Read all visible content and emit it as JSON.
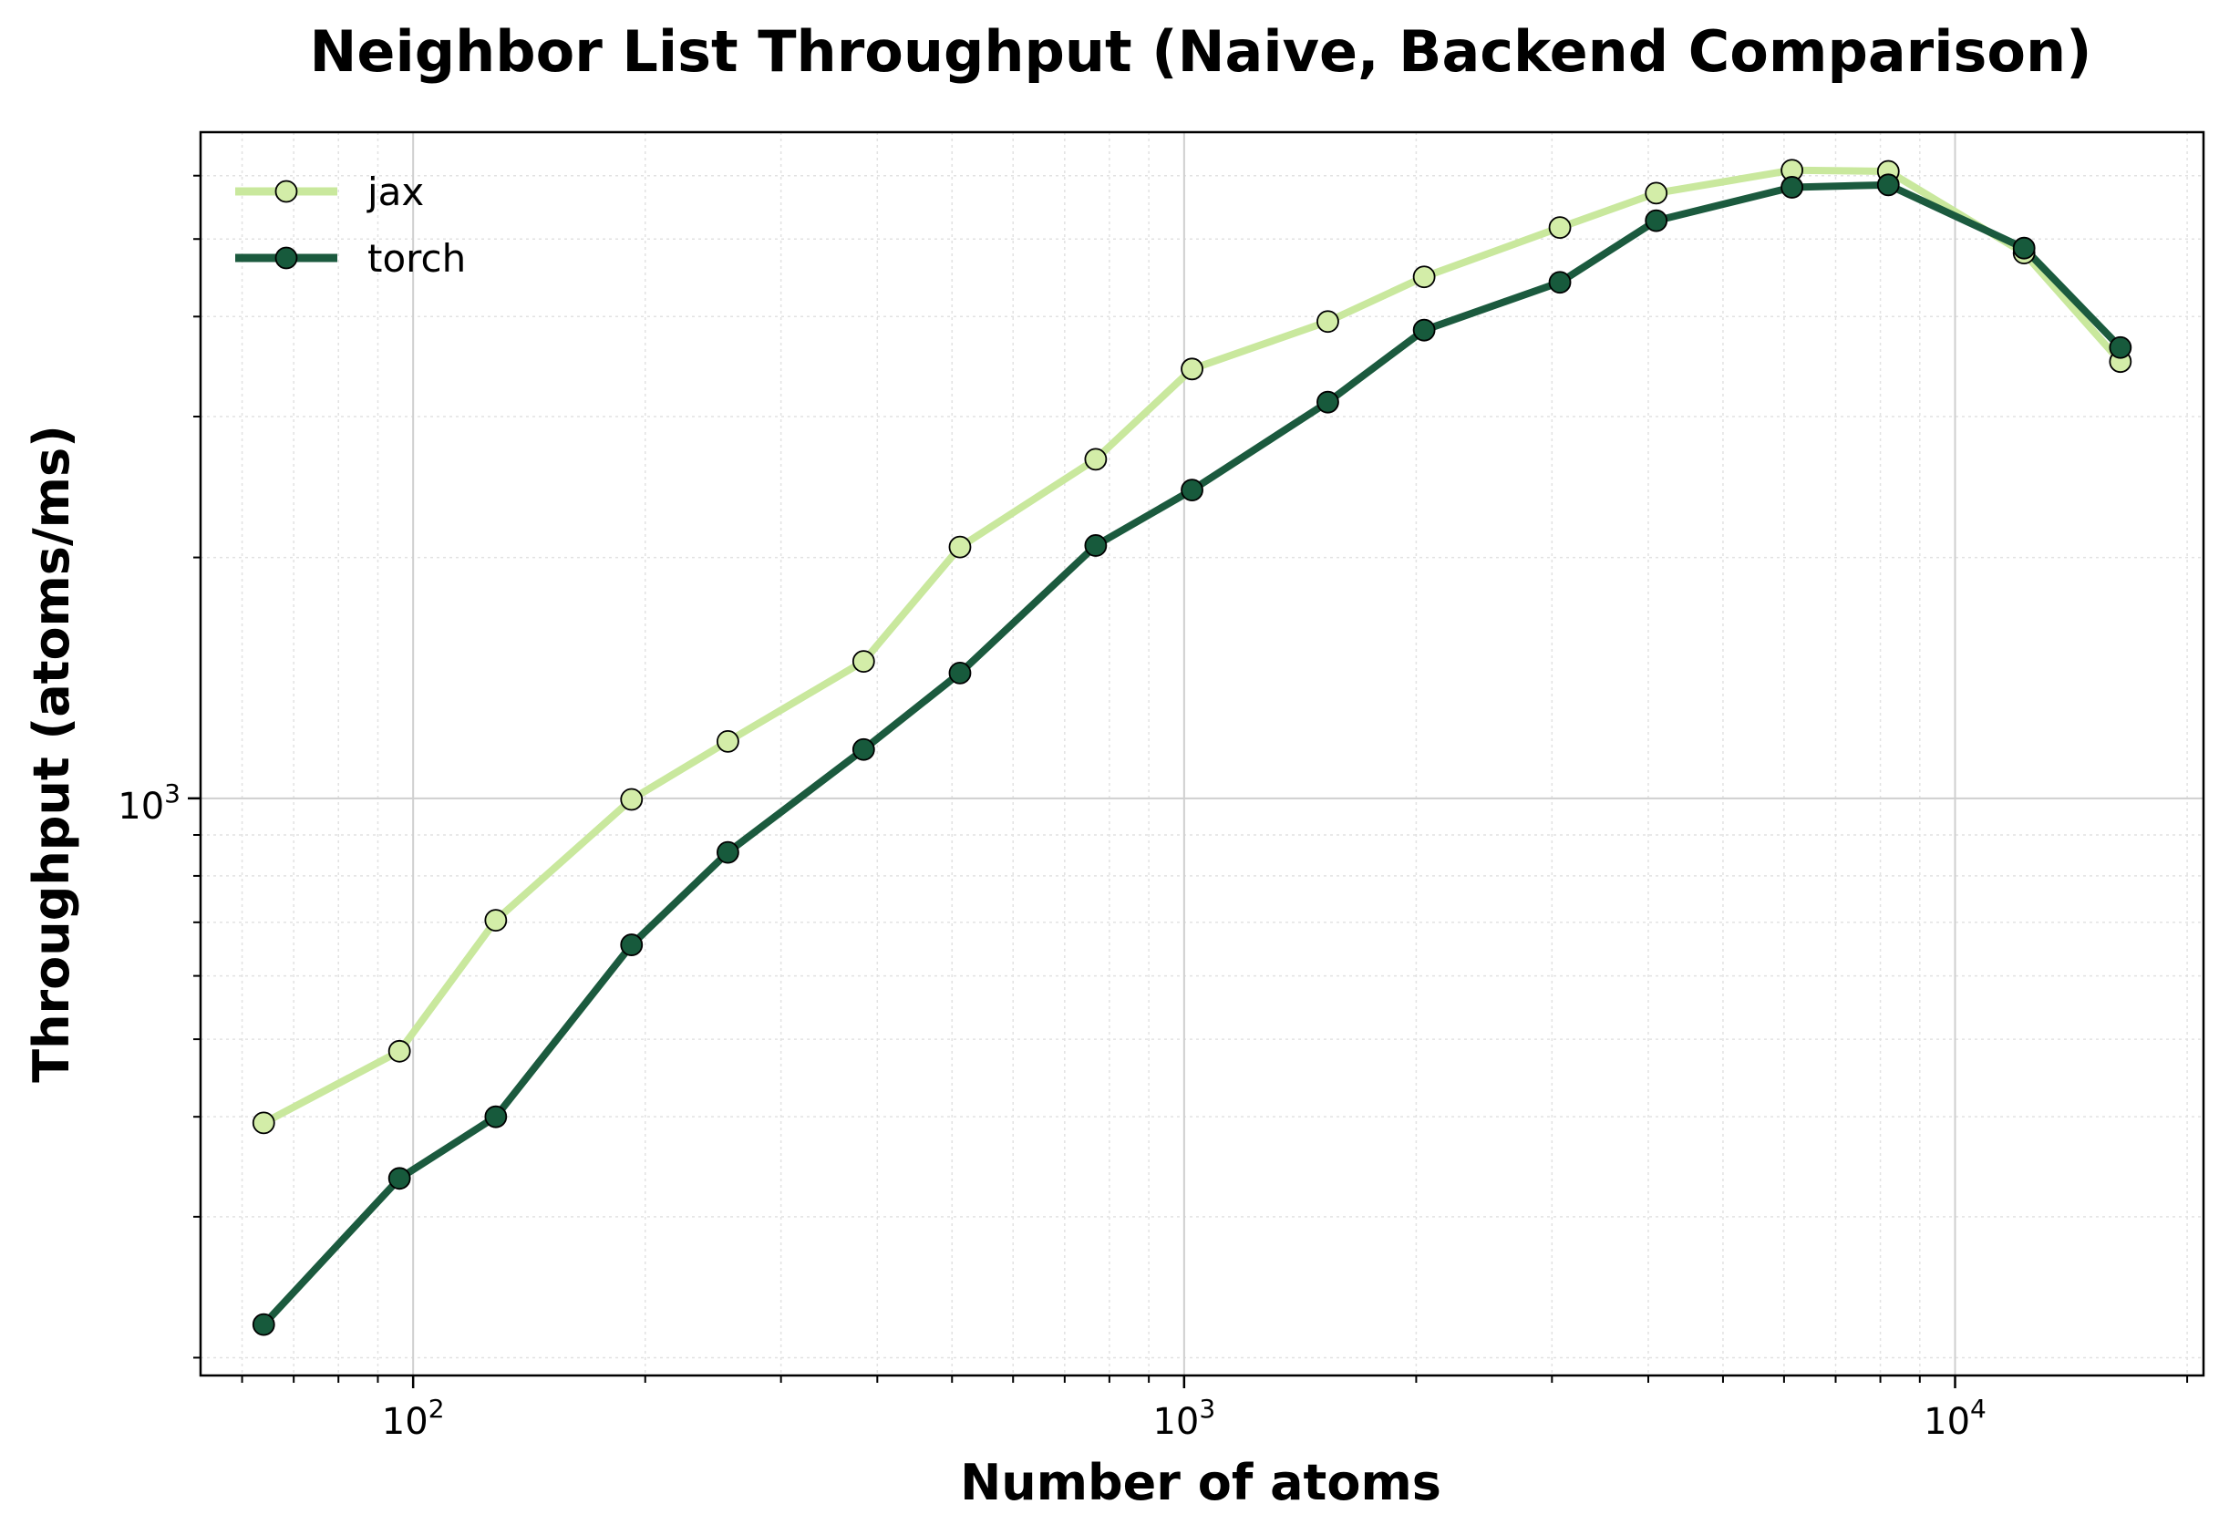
{
  "chart_data": {
    "type": "line",
    "title": "Neighbor List Throughput (Naive, Backend Comparison)",
    "xlabel": "Number of atoms",
    "ylabel": "Throughput (atoms/ms)",
    "xscale": "log",
    "yscale": "log",
    "xlim": [
      53,
      21000
    ],
    "ylim": [
      190,
      6800
    ],
    "grid": true,
    "legend_position": "top-left",
    "x_ticks": [
      {
        "base": "10",
        "exp": "2",
        "value": 100
      },
      {
        "base": "10",
        "exp": "3",
        "value": 1000
      },
      {
        "base": "10",
        "exp": "4",
        "value": 10000
      }
    ],
    "y_ticks": [
      {
        "base": "10",
        "exp": "3",
        "value": 1000
      }
    ],
    "x": [
      64,
      96,
      128,
      192,
      256,
      384,
      512,
      768,
      1024,
      1536,
      2048,
      3072,
      4096,
      6144,
      8192,
      12288,
      16384
    ],
    "series": [
      {
        "name": "jax",
        "color": "#c9e89d",
        "marker_fill": "#d3eda8",
        "values": [
          393,
          483,
          704,
          997,
          1178,
          1483,
          2061,
          2653,
          3440,
          3943,
          4484,
          5168,
          5706,
          6095,
          6075,
          4802,
          3514
        ]
      },
      {
        "name": "torch",
        "color": "#1b5a3e",
        "marker_fill": "#175a3c",
        "values": [
          220,
          335,
          400,
          656,
          856,
          1151,
          1434,
          2070,
          2428,
          3127,
          3847,
          4414,
          5271,
          5803,
          5843,
          4871,
          3659
        ]
      }
    ]
  }
}
